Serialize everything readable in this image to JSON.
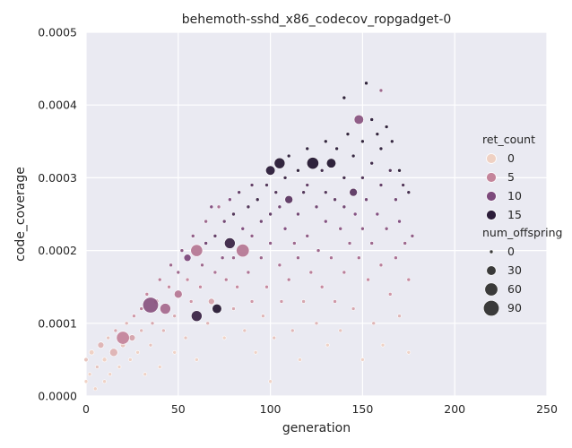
{
  "chart_data": {
    "type": "scatter",
    "title": "behemoth-sshd_x86_codecov_ropgadget-0",
    "xlabel": "generation",
    "ylabel": "code_coverage",
    "xlim": [
      0,
      250
    ],
    "ylim": [
      0,
      0.0005
    ],
    "x_ticks": [
      "0",
      "50",
      "100",
      "150",
      "200",
      "250"
    ],
    "y_ticks": [
      "0.0000",
      "0.0001",
      "0.0002",
      "0.0003",
      "0.0004",
      "0.0005"
    ],
    "grid": true,
    "background": "#eaeaf2",
    "hue_variable": "ret_count",
    "size_variable": "num_offspring",
    "legend": {
      "placement": "right",
      "hue_title": "ret_count",
      "hue_entries": [
        {
          "label": "0",
          "color": "#efd1c3"
        },
        {
          "label": "5",
          "color": "#c4859b"
        },
        {
          "label": "10",
          "color": "#7d4a7c"
        },
        {
          "label": "15",
          "color": "#2c1d3a"
        }
      ],
      "size_title": "num_offspring",
      "size_entries": [
        {
          "label": "0",
          "value": 0
        },
        {
          "label": "30",
          "value": 30
        },
        {
          "label": "60",
          "value": 60
        },
        {
          "label": "90",
          "value": 90
        }
      ]
    },
    "points": [
      [
        0,
        2e-05,
        0,
        0
      ],
      [
        0,
        5e-05,
        1,
        2
      ],
      [
        2,
        3e-05,
        0,
        0
      ],
      [
        3,
        6e-05,
        0,
        5
      ],
      [
        5,
        1e-05,
        0,
        0
      ],
      [
        6,
        4e-05,
        1,
        0
      ],
      [
        8,
        7e-05,
        2,
        10
      ],
      [
        10,
        2e-05,
        0,
        0
      ],
      [
        10,
        5e-05,
        0,
        3
      ],
      [
        12,
        8e-05,
        1,
        0
      ],
      [
        13,
        3e-05,
        0,
        0
      ],
      [
        15,
        6e-05,
        2,
        20
      ],
      [
        16,
        9e-05,
        3,
        0
      ],
      [
        18,
        4e-05,
        0,
        0
      ],
      [
        20,
        7e-05,
        1,
        5
      ],
      [
        20,
        8e-05,
        5,
        60
      ],
      [
        22,
        0.0001,
        2,
        0
      ],
      [
        24,
        5e-05,
        0,
        0
      ],
      [
        25,
        8e-05,
        3,
        10
      ],
      [
        26,
        0.00011,
        4,
        0
      ],
      [
        28,
        6e-05,
        0,
        0
      ],
      [
        30,
        9e-05,
        2,
        0
      ],
      [
        30,
        0.00012,
        6,
        0
      ],
      [
        32,
        3e-05,
        0,
        0
      ],
      [
        33,
        0.00014,
        5,
        0
      ],
      [
        35,
        7e-05,
        1,
        0
      ],
      [
        35,
        0.000125,
        9,
        90
      ],
      [
        36,
        0.0001,
        3,
        0
      ],
      [
        38,
        0.00013,
        5,
        5
      ],
      [
        40,
        0.00016,
        6,
        0
      ],
      [
        40,
        4e-05,
        0,
        0
      ],
      [
        42,
        9e-05,
        2,
        0
      ],
      [
        43,
        0.00012,
        7,
        40
      ],
      [
        45,
        0.00015,
        5,
        0
      ],
      [
        46,
        0.00018,
        8,
        0
      ],
      [
        48,
        6e-05,
        0,
        0
      ],
      [
        48,
        0.00011,
        3,
        0
      ],
      [
        50,
        0.00014,
        6,
        20
      ],
      [
        50,
        0.00017,
        8,
        0
      ],
      [
        52,
        0.0002,
        9,
        0
      ],
      [
        54,
        8e-05,
        1,
        0
      ],
      [
        55,
        0.00016,
        5,
        0
      ],
      [
        55,
        0.00019,
        10,
        15
      ],
      [
        57,
        0.00013,
        4,
        0
      ],
      [
        58,
        0.00022,
        9,
        0
      ],
      [
        60,
        0.0002,
        6,
        50
      ],
      [
        60,
        5e-05,
        0,
        0
      ],
      [
        60,
        0.00011,
        14,
        40
      ],
      [
        62,
        0.00015,
        5,
        0
      ],
      [
        63,
        0.00018,
        8,
        0
      ],
      [
        65,
        0.00021,
        11,
        0
      ],
      [
        65,
        0.00024,
        8,
        0
      ],
      [
        66,
        0.0001,
        2,
        0
      ],
      [
        68,
        0.00013,
        3,
        10
      ],
      [
        68,
        0.00026,
        10,
        0
      ],
      [
        70,
        0.00017,
        7,
        0
      ],
      [
        70,
        0.00022,
        12,
        0
      ],
      [
        71,
        0.00012,
        16,
        30
      ],
      [
        72,
        0.00026,
        7,
        0
      ],
      [
        74,
        0.00019,
        9,
        0
      ],
      [
        75,
        8e-05,
        0,
        0
      ],
      [
        75,
        0.00024,
        11,
        0
      ],
      [
        76,
        0.00016,
        6,
        0
      ],
      [
        78,
        0.00021,
        14,
        40
      ],
      [
        78,
        0.00027,
        10,
        0
      ],
      [
        80,
        0.00012,
        3,
        0
      ],
      [
        80,
        0.00019,
        8,
        0
      ],
      [
        80,
        0.00025,
        13,
        0
      ],
      [
        82,
        0.00015,
        5,
        0
      ],
      [
        83,
        0.00028,
        12,
        0
      ],
      [
        85,
        0.00023,
        10,
        0
      ],
      [
        85,
        0.0002,
        6,
        60
      ],
      [
        86,
        9e-05,
        1,
        0
      ],
      [
        88,
        0.00026,
        13,
        0
      ],
      [
        88,
        0.00017,
        7,
        0
      ],
      [
        90,
        0.00029,
        12,
        0
      ],
      [
        90,
        0.00013,
        4,
        0
      ],
      [
        90,
        0.00022,
        9,
        0
      ],
      [
        92,
        6e-05,
        0,
        0
      ],
      [
        93,
        0.00027,
        14,
        0
      ],
      [
        95,
        0.00024,
        11,
        0
      ],
      [
        95,
        0.00019,
        8,
        0
      ],
      [
        96,
        0.00011,
        2,
        0
      ],
      [
        98,
        0.00029,
        13,
        0
      ],
      [
        98,
        0.00015,
        5,
        0
      ],
      [
        100,
        0.00031,
        15,
        30
      ],
      [
        100,
        0.00025,
        12,
        0
      ],
      [
        100,
        0.00021,
        9,
        0
      ],
      [
        100,
        2e-05,
        0,
        0
      ],
      [
        102,
        8e-05,
        1,
        0
      ],
      [
        103,
        0.00028,
        13,
        0
      ],
      [
        105,
        0.00032,
        16,
        40
      ],
      [
        105,
        0.00026,
        11,
        0
      ],
      [
        105,
        0.00018,
        7,
        0
      ],
      [
        106,
        0.00013,
        4,
        0
      ],
      [
        108,
        0.00023,
        10,
        0
      ],
      [
        108,
        0.0003,
        14,
        0
      ],
      [
        110,
        0.00033,
        15,
        0
      ],
      [
        110,
        0.00027,
        12,
        20
      ],
      [
        110,
        0.00016,
        6,
        0
      ],
      [
        112,
        9e-05,
        2,
        0
      ],
      [
        113,
        0.00021,
        8,
        0
      ],
      [
        115,
        0.00031,
        16,
        0
      ],
      [
        115,
        0.00025,
        11,
        0
      ],
      [
        115,
        0.00019,
        8,
        0
      ],
      [
        116,
        5e-05,
        0,
        0
      ],
      [
        118,
        0.00028,
        13,
        0
      ],
      [
        118,
        0.00013,
        3,
        0
      ],
      [
        120,
        0.00034,
        15,
        0
      ],
      [
        120,
        0.00029,
        12,
        0
      ],
      [
        120,
        0.00022,
        9,
        0
      ],
      [
        122,
        0.00017,
        6,
        0
      ],
      [
        123,
        0.00032,
        17,
        50
      ],
      [
        125,
        0.00026,
        11,
        0
      ],
      [
        125,
        0.0001,
        2,
        0
      ],
      [
        126,
        0.0002,
        8,
        0
      ],
      [
        128,
        0.00031,
        14,
        0
      ],
      [
        128,
        0.00015,
        5,
        0
      ],
      [
        130,
        0.00035,
        16,
        0
      ],
      [
        130,
        0.00028,
        13,
        0
      ],
      [
        130,
        0.00024,
        10,
        0
      ],
      [
        131,
        7e-05,
        0,
        0
      ],
      [
        133,
        0.00032,
        17,
        30
      ],
      [
        133,
        0.00019,
        7,
        0
      ],
      [
        135,
        0.00027,
        12,
        0
      ],
      [
        135,
        0.00013,
        4,
        0
      ],
      [
        136,
        0.00034,
        15,
        0
      ],
      [
        138,
        0.00023,
        9,
        0
      ],
      [
        138,
        9e-05,
        1,
        0
      ],
      [
        140,
        0.00041,
        17,
        0
      ],
      [
        140,
        0.0003,
        14,
        0
      ],
      [
        140,
        0.00026,
        11,
        0
      ],
      [
        140,
        0.00017,
        6,
        0
      ],
      [
        142,
        0.00036,
        16,
        0
      ],
      [
        143,
        0.00021,
        8,
        0
      ],
      [
        145,
        0.00033,
        15,
        0
      ],
      [
        145,
        0.00028,
        12,
        20
      ],
      [
        145,
        0.00012,
        3,
        0
      ],
      [
        146,
        0.00025,
        10,
        0
      ],
      [
        148,
        0.00038,
        9,
        30
      ],
      [
        148,
        0.00019,
        7,
        0
      ],
      [
        150,
        0.00035,
        16,
        0
      ],
      [
        150,
        0.0003,
        13,
        0
      ],
      [
        150,
        0.00023,
        9,
        0
      ],
      [
        150,
        5e-05,
        0,
        0
      ],
      [
        152,
        0.00043,
        17,
        0
      ],
      [
        152,
        0.00027,
        11,
        0
      ],
      [
        153,
        0.00016,
        5,
        0
      ],
      [
        155,
        0.00038,
        15,
        0
      ],
      [
        155,
        0.00032,
        14,
        0
      ],
      [
        155,
        0.00021,
        8,
        0
      ],
      [
        156,
        0.0001,
        2,
        0
      ],
      [
        158,
        0.00036,
        16,
        0
      ],
      [
        158,
        0.00025,
        10,
        0
      ],
      [
        160,
        0.00042,
        8,
        0
      ],
      [
        160,
        0.00034,
        15,
        0
      ],
      [
        160,
        0.00029,
        12,
        0
      ],
      [
        160,
        0.00018,
        6,
        0
      ],
      [
        161,
        7e-05,
        0,
        0
      ],
      [
        163,
        0.00037,
        16,
        0
      ],
      [
        163,
        0.00023,
        9,
        0
      ],
      [
        165,
        0.00031,
        13,
        0
      ],
      [
        165,
        0.00014,
        4,
        0
      ],
      [
        166,
        0.00035,
        15,
        0
      ],
      [
        168,
        0.00027,
        11,
        0
      ],
      [
        168,
        0.00019,
        7,
        0
      ],
      [
        170,
        0.00031,
        16,
        0
      ],
      [
        170,
        0.00024,
        10,
        0
      ],
      [
        170,
        0.00011,
        2,
        0
      ],
      [
        172,
        0.00029,
        13,
        0
      ],
      [
        173,
        0.00021,
        8,
        0
      ],
      [
        175,
        0.00028,
        14,
        0
      ],
      [
        175,
        0.00016,
        5,
        0
      ],
      [
        175,
        6e-05,
        0,
        0
      ],
      [
        177,
        0.00022,
        9,
        0
      ]
    ]
  }
}
